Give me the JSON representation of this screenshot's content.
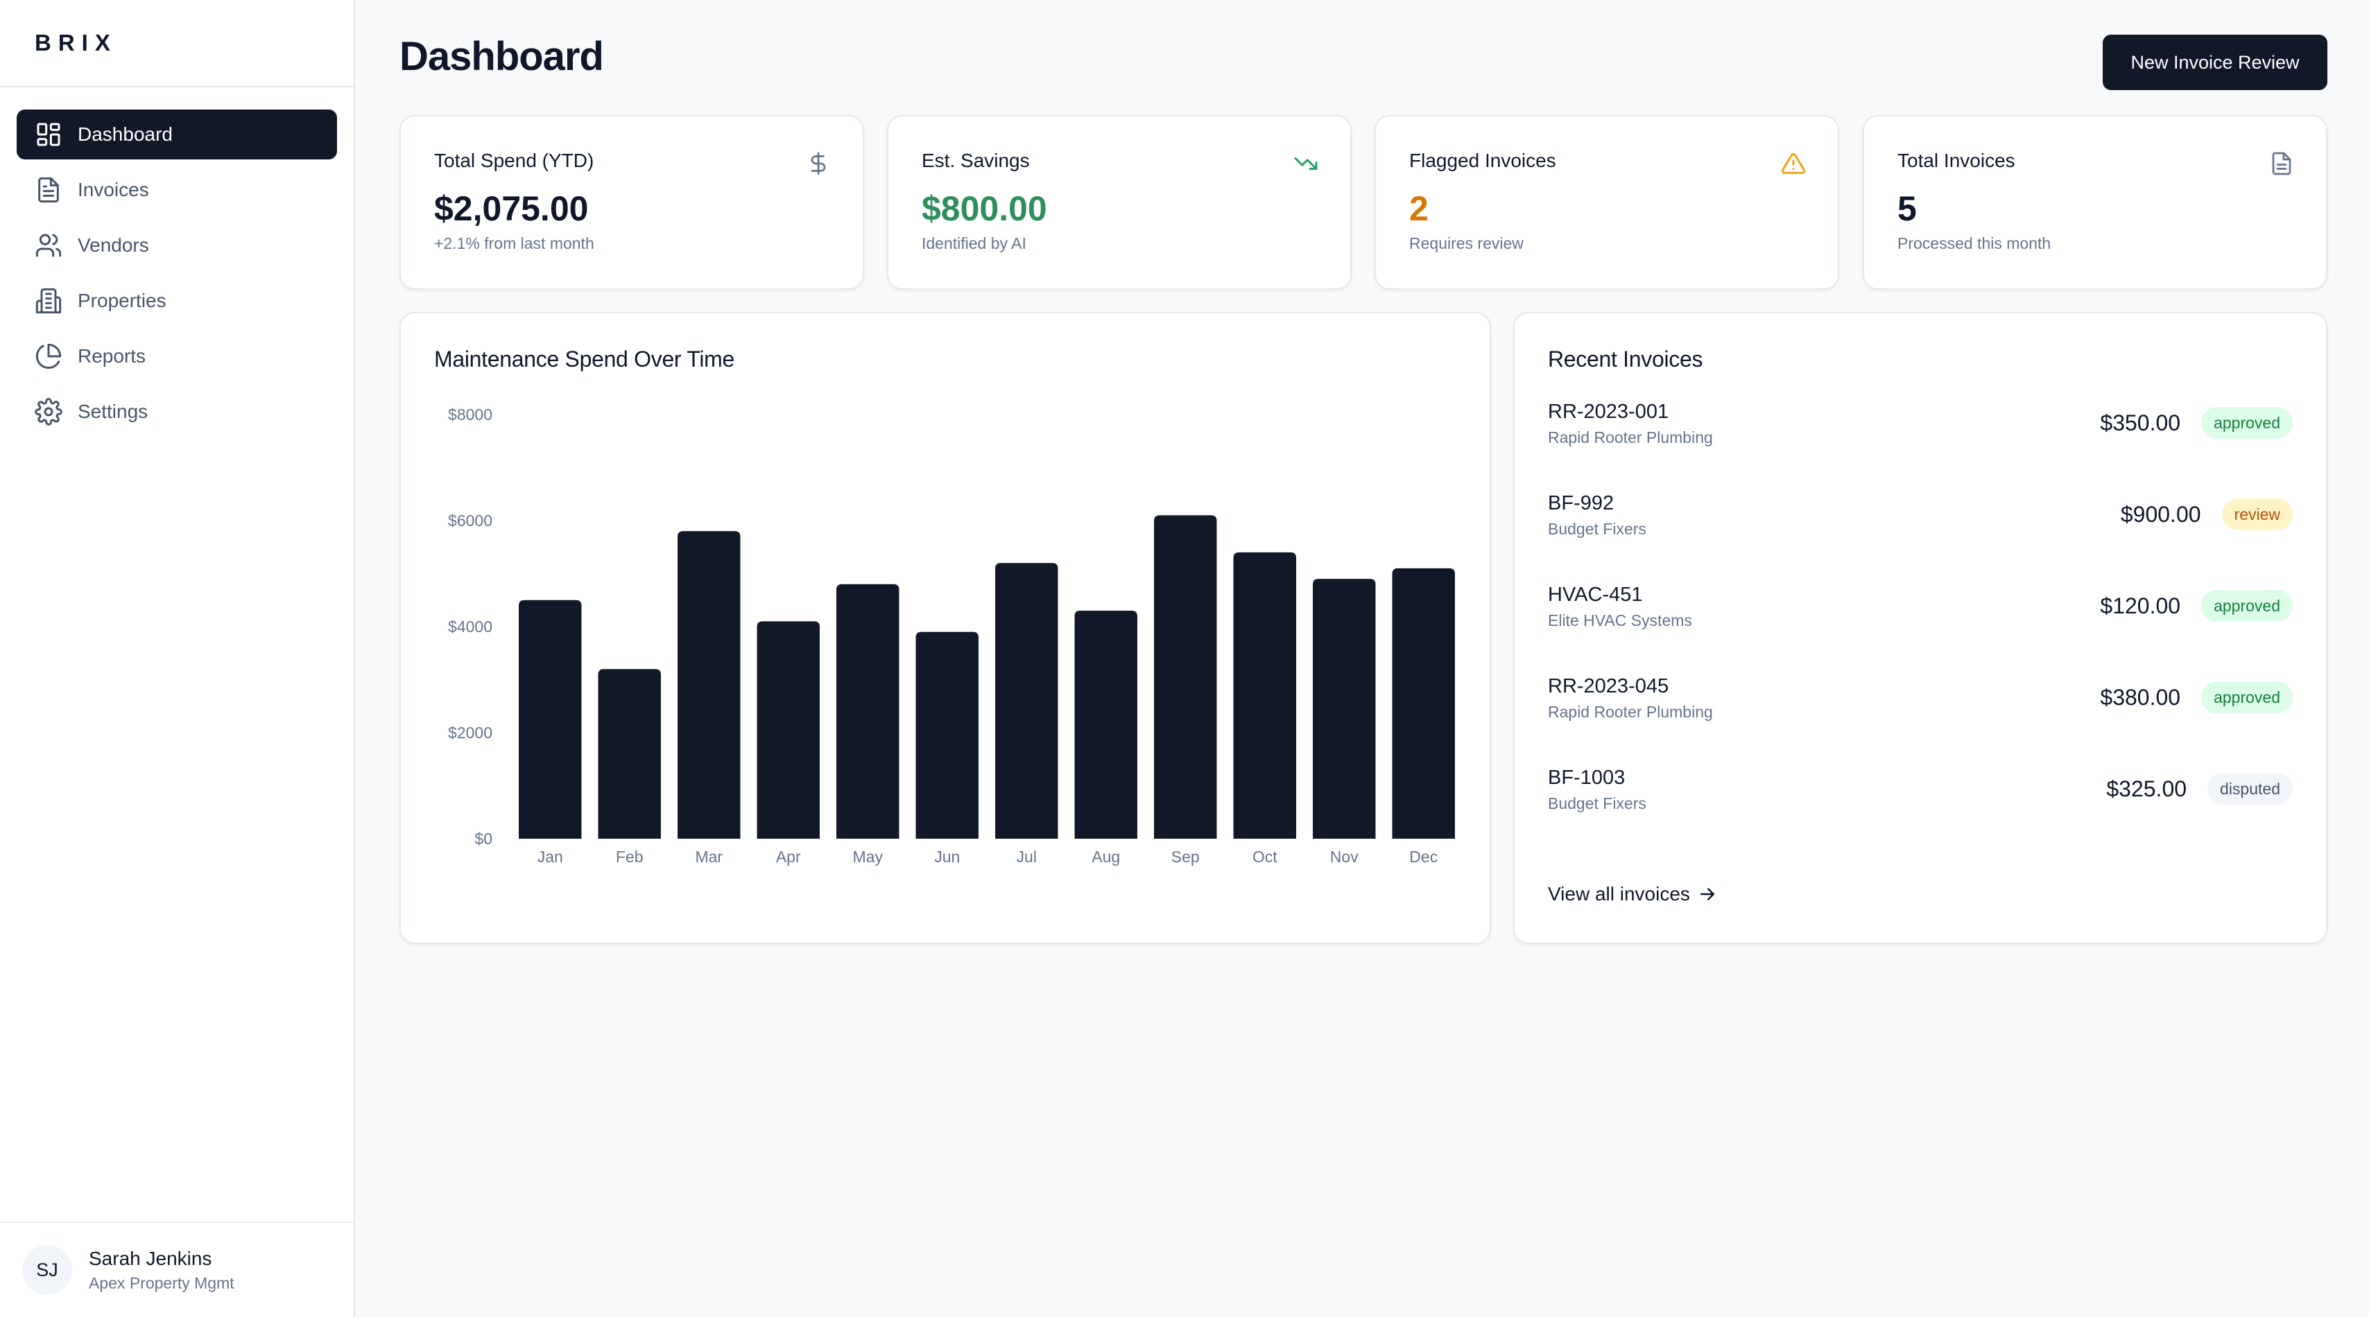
{
  "brand": {
    "logo": "BRIX"
  },
  "sidebar": {
    "items": [
      {
        "label": "Dashboard",
        "icon": "dashboard-grid-icon",
        "active": true
      },
      {
        "label": "Invoices",
        "icon": "file-text-icon",
        "active": false
      },
      {
        "label": "Vendors",
        "icon": "users-icon",
        "active": false
      },
      {
        "label": "Properties",
        "icon": "building-icon",
        "active": false
      },
      {
        "label": "Reports",
        "icon": "pie-chart-icon",
        "active": false
      },
      {
        "label": "Settings",
        "icon": "gear-icon",
        "active": false
      }
    ]
  },
  "user": {
    "initials": "SJ",
    "name": "Sarah Jenkins",
    "org": "Apex Property Mgmt"
  },
  "header": {
    "title": "Dashboard",
    "primary_button": "New Invoice Review"
  },
  "stats": [
    {
      "title": "Total Spend (YTD)",
      "value": "$2,075.00",
      "sub": "+2.1% from last month",
      "icon": "dollar-icon",
      "value_color": "#0f172a",
      "icon_color": "#64748b"
    },
    {
      "title": "Est. Savings",
      "value": "$800.00",
      "sub": "Identified by AI",
      "icon": "trending-down-icon",
      "value_color": "#2f8f5b",
      "icon_color": "#22a06b"
    },
    {
      "title": "Flagged Invoices",
      "value": "2",
      "sub": "Requires review",
      "icon": "warning-triangle-icon",
      "value_color": "#d97706",
      "icon_color": "#f59e0b"
    },
    {
      "title": "Total Invoices",
      "value": "5",
      "sub": "Processed this month",
      "icon": "document-icon",
      "value_color": "#0f172a",
      "icon_color": "#64748b"
    }
  ],
  "chart_data": {
    "type": "bar",
    "title": "Maintenance Spend Over Time",
    "categories": [
      "Jan",
      "Feb",
      "Mar",
      "Apr",
      "May",
      "Jun",
      "Jul",
      "Aug",
      "Sep",
      "Oct",
      "Nov",
      "Dec"
    ],
    "values": [
      4500,
      3200,
      5800,
      4100,
      4800,
      3900,
      5200,
      4300,
      6100,
      5400,
      4900,
      5100
    ],
    "yticks": [
      "$0",
      "$2000",
      "$4000",
      "$6000",
      "$8000"
    ],
    "ylim": [
      0,
      8000
    ],
    "xlabel": "",
    "ylabel": "",
    "grid": false,
    "bar_color": "#111827"
  },
  "recent_invoices": {
    "title": "Recent Invoices",
    "items": [
      {
        "id": "RR-2023-001",
        "vendor": "Rapid Rooter Plumbing",
        "amount": "$350.00",
        "status": "approved"
      },
      {
        "id": "BF-992",
        "vendor": "Budget Fixers",
        "amount": "$900.00",
        "status": "review"
      },
      {
        "id": "HVAC-451",
        "vendor": "Elite HVAC Systems",
        "amount": "$120.00",
        "status": "approved"
      },
      {
        "id": "RR-2023-045",
        "vendor": "Rapid Rooter Plumbing",
        "amount": "$380.00",
        "status": "approved"
      },
      {
        "id": "BF-1003",
        "vendor": "Budget Fixers",
        "amount": "$325.00",
        "status": "disputed"
      }
    ],
    "view_all": "View all invoices"
  }
}
